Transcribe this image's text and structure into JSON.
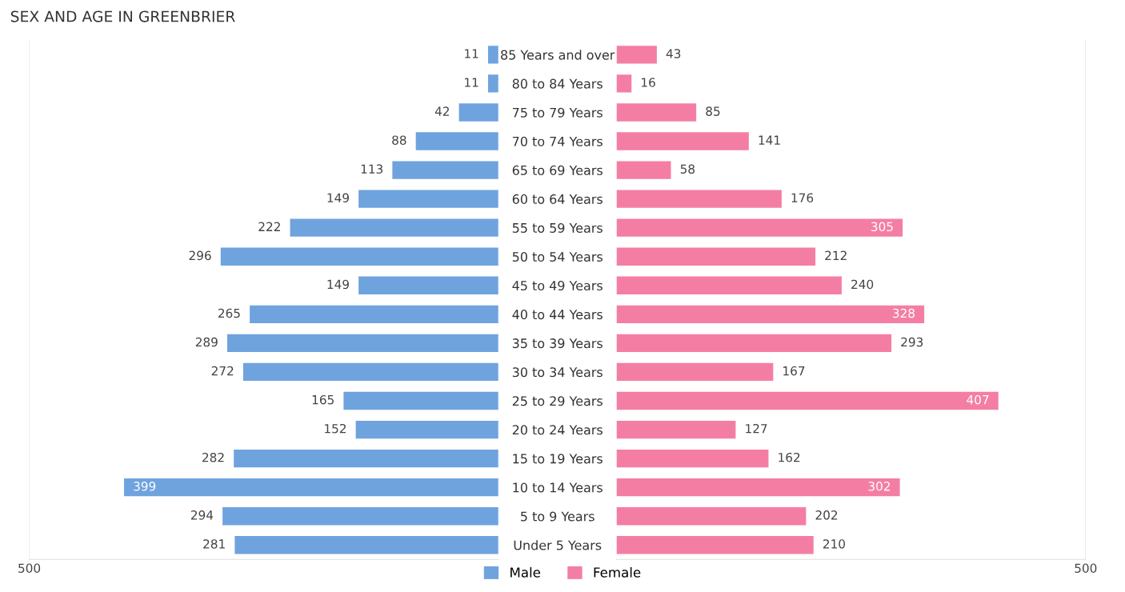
{
  "chart_data": [
    {
      "type": "bar",
      "orientation": "horizontal",
      "title": "SEX AND AGE IN GREENBRIER",
      "categories": [
        "85 Years and over",
        "80 to 84 Years",
        "75 to 79 Years",
        "70 to 74 Years",
        "65 to 69 Years",
        "60 to 64 Years",
        "55 to 59 Years",
        "50 to 54 Years",
        "45 to 49 Years",
        "40 to 44 Years",
        "35 to 39 Years",
        "30 to 34 Years",
        "25 to 29 Years",
        "20 to 24 Years",
        "15 to 19 Years",
        "10 to 14 Years",
        "5 to 9 Years",
        "Under 5 Years"
      ],
      "series": [
        {
          "name": "Male",
          "color": "#6fa3de",
          "values": [
            11,
            11,
            42,
            88,
            113,
            149,
            222,
            296,
            149,
            265,
            289,
            272,
            165,
            152,
            282,
            399,
            294,
            281
          ]
        }
      ],
      "xlim": [
        500,
        0
      ],
      "xticks": [
        500
      ],
      "data_labels": true,
      "legend": "bottom"
    },
    {
      "type": "bar",
      "orientation": "horizontal",
      "categories": [
        null,
        null,
        null,
        null,
        null,
        null,
        null,
        null,
        null,
        null,
        null,
        null,
        null,
        null,
        null,
        null,
        null,
        null
      ],
      "series": [
        {
          "name": "Female",
          "color": "#f47ea3",
          "values": [
            43,
            16,
            85,
            141,
            58,
            176,
            305,
            212,
            240,
            328,
            293,
            167,
            407,
            127,
            162,
            302,
            202,
            210
          ]
        }
      ],
      "xlim": [
        0,
        500
      ],
      "xticks": [
        500
      ],
      "data_labels": true,
      "legend": "bottom"
    }
  ]
}
